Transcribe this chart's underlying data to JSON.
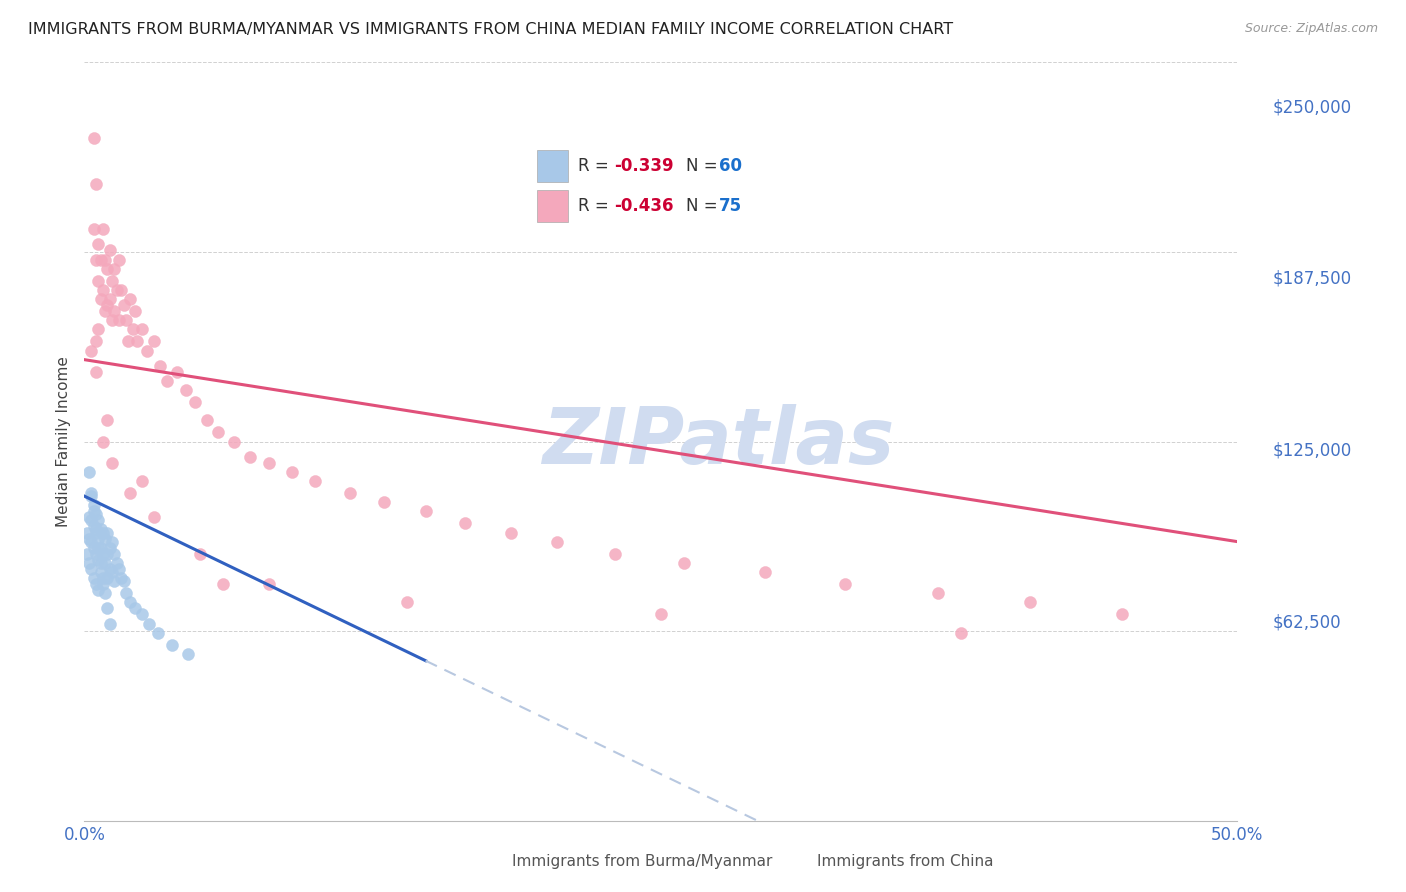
{
  "title": "IMMIGRANTS FROM BURMA/MYANMAR VS IMMIGRANTS FROM CHINA MEDIAN FAMILY INCOME CORRELATION CHART",
  "source": "Source: ZipAtlas.com",
  "ylabel": "Median Family Income",
  "xlim": [
    0.0,
    0.5
  ],
  "ylim": [
    0,
    250000
  ],
  "yticks": [
    0,
    62500,
    125000,
    187500,
    250000
  ],
  "ytick_labels": [
    "",
    "$62,500",
    "$125,000",
    "$187,500",
    "$250,000"
  ],
  "xticks": [
    0.0,
    0.1,
    0.2,
    0.3,
    0.4,
    0.5
  ],
  "xtick_labels": [
    "0.0%",
    "",
    "",
    "",
    "",
    "50.0%"
  ],
  "color_burma": "#a8c8e8",
  "color_china": "#f4a8bc",
  "line_color_burma": "#3060c0",
  "line_color_china": "#e0507a",
  "dashed_color": "#b8c8e0",
  "legend_R_color": "#cc0033",
  "legend_N_color": "#1a6fcc",
  "watermark": "ZIPatlas",
  "watermark_color": "#d0dcf0",
  "background_color": "#ffffff",
  "title_fontsize": 11.5,
  "axis_label_color": "#4472c4",
  "burma_line_x0": 0.0,
  "burma_line_y0": 107000,
  "burma_line_x1": 0.15,
  "burma_line_y1": 52000,
  "china_line_x0": 0.0,
  "china_line_y0": 152000,
  "china_line_x1": 0.5,
  "china_line_y1": 92000,
  "burma_x": [
    0.001,
    0.001,
    0.002,
    0.002,
    0.002,
    0.003,
    0.003,
    0.003,
    0.003,
    0.004,
    0.004,
    0.004,
    0.004,
    0.005,
    0.005,
    0.005,
    0.005,
    0.006,
    0.006,
    0.006,
    0.006,
    0.007,
    0.007,
    0.007,
    0.008,
    0.008,
    0.008,
    0.009,
    0.009,
    0.01,
    0.01,
    0.01,
    0.011,
    0.011,
    0.012,
    0.012,
    0.013,
    0.013,
    0.014,
    0.015,
    0.016,
    0.017,
    0.018,
    0.02,
    0.022,
    0.025,
    0.028,
    0.032,
    0.038,
    0.045,
    0.002,
    0.003,
    0.004,
    0.005,
    0.006,
    0.007,
    0.008,
    0.009,
    0.01,
    0.011
  ],
  "burma_y": [
    95000,
    88000,
    100000,
    93000,
    85000,
    107000,
    99000,
    92000,
    83000,
    104000,
    97000,
    90000,
    80000,
    101000,
    95000,
    88000,
    78000,
    99000,
    93000,
    86000,
    76000,
    96000,
    90000,
    82000,
    95000,
    88000,
    78000,
    93000,
    85000,
    95000,
    88000,
    80000,
    90000,
    83000,
    92000,
    82000,
    88000,
    79000,
    85000,
    83000,
    80000,
    79000,
    75000,
    72000,
    70000,
    68000,
    65000,
    62000,
    58000,
    55000,
    115000,
    108000,
    102000,
    96000,
    90000,
    85000,
    80000,
    75000,
    70000,
    65000
  ],
  "china_x": [
    0.003,
    0.004,
    0.004,
    0.005,
    0.005,
    0.006,
    0.006,
    0.006,
    0.007,
    0.007,
    0.008,
    0.008,
    0.009,
    0.009,
    0.01,
    0.01,
    0.011,
    0.011,
    0.012,
    0.012,
    0.013,
    0.013,
    0.014,
    0.015,
    0.015,
    0.016,
    0.017,
    0.018,
    0.019,
    0.02,
    0.021,
    0.022,
    0.023,
    0.025,
    0.027,
    0.03,
    0.033,
    0.036,
    0.04,
    0.044,
    0.048,
    0.053,
    0.058,
    0.065,
    0.072,
    0.08,
    0.09,
    0.1,
    0.115,
    0.13,
    0.148,
    0.165,
    0.185,
    0.205,
    0.23,
    0.26,
    0.295,
    0.33,
    0.37,
    0.41,
    0.45,
    0.005,
    0.008,
    0.012,
    0.02,
    0.03,
    0.05,
    0.08,
    0.14,
    0.25,
    0.38,
    0.005,
    0.01,
    0.025,
    0.06
  ],
  "china_y": [
    155000,
    195000,
    225000,
    210000,
    185000,
    190000,
    178000,
    162000,
    185000,
    172000,
    195000,
    175000,
    185000,
    168000,
    182000,
    170000,
    188000,
    172000,
    178000,
    165000,
    182000,
    168000,
    175000,
    185000,
    165000,
    175000,
    170000,
    165000,
    158000,
    172000,
    162000,
    168000,
    158000,
    162000,
    155000,
    158000,
    150000,
    145000,
    148000,
    142000,
    138000,
    132000,
    128000,
    125000,
    120000,
    118000,
    115000,
    112000,
    108000,
    105000,
    102000,
    98000,
    95000,
    92000,
    88000,
    85000,
    82000,
    78000,
    75000,
    72000,
    68000,
    148000,
    125000,
    118000,
    108000,
    100000,
    88000,
    78000,
    72000,
    68000,
    62000,
    158000,
    132000,
    112000,
    78000
  ]
}
